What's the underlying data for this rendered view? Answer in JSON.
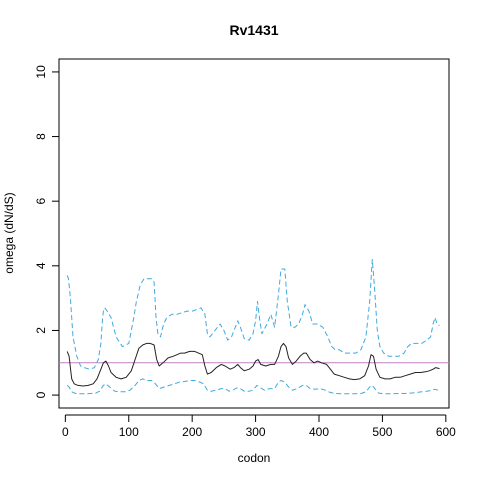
{
  "chart_data": {
    "type": "line",
    "title": "Rv1431",
    "xlabel": "codon",
    "ylabel": "omega (dN/dS)",
    "xlim": [
      -10,
      605
    ],
    "ylim": [
      -0.4,
      10.4
    ],
    "x_ticks": [
      0,
      100,
      200,
      300,
      400,
      500,
      600
    ],
    "x_tick_labels": [
      "0",
      "100",
      "200",
      "300",
      "400",
      "500",
      "600"
    ],
    "y_ticks": [
      0,
      2,
      4,
      6,
      8,
      10
    ],
    "y_tick_labels": [
      "0",
      "2",
      "4",
      "6",
      "8",
      "10"
    ],
    "grid": false,
    "legend": "none",
    "reference_line": {
      "y": 1,
      "color": "#c080c0"
    },
    "series": [
      {
        "style": "dashed",
        "color": "#3fa9e0",
        "points": [
          [
            3,
            3.7
          ],
          [
            5,
            3.6
          ],
          [
            8,
            3.0
          ],
          [
            12,
            1.8
          ],
          [
            18,
            1.2
          ],
          [
            24,
            0.9
          ],
          [
            30,
            0.85
          ],
          [
            38,
            0.8
          ],
          [
            46,
            0.85
          ],
          [
            52,
            1.1
          ],
          [
            56,
            1.6
          ],
          [
            58,
            2.2
          ],
          [
            60,
            2.6
          ],
          [
            62,
            2.7
          ],
          [
            66,
            2.6
          ],
          [
            72,
            2.4
          ],
          [
            80,
            1.8
          ],
          [
            90,
            1.5
          ],
          [
            100,
            1.6
          ],
          [
            108,
            2.4
          ],
          [
            112,
            2.9
          ],
          [
            118,
            3.4
          ],
          [
            124,
            3.6
          ],
          [
            130,
            3.6
          ],
          [
            136,
            3.6
          ],
          [
            140,
            3.5
          ],
          [
            143,
            2.4
          ],
          [
            146,
            1.9
          ],
          [
            150,
            1.8
          ],
          [
            155,
            2.2
          ],
          [
            160,
            2.4
          ],
          [
            168,
            2.5
          ],
          [
            176,
            2.5
          ],
          [
            184,
            2.55
          ],
          [
            192,
            2.6
          ],
          [
            200,
            2.6
          ],
          [
            208,
            2.65
          ],
          [
            214,
            2.7
          ],
          [
            220,
            2.5
          ],
          [
            224,
            1.9
          ],
          [
            228,
            1.8
          ],
          [
            236,
            2.0
          ],
          [
            244,
            2.2
          ],
          [
            250,
            2.0
          ],
          [
            256,
            1.7
          ],
          [
            262,
            1.8
          ],
          [
            268,
            2.1
          ],
          [
            272,
            2.3
          ],
          [
            276,
            2.1
          ],
          [
            282,
            1.75
          ],
          [
            290,
            1.7
          ],
          [
            296,
            1.9
          ],
          [
            300,
            2.3
          ],
          [
            303,
            2.9
          ],
          [
            306,
            2.4
          ],
          [
            310,
            1.9
          ],
          [
            318,
            2.2
          ],
          [
            324,
            2.5
          ],
          [
            330,
            2.1
          ],
          [
            336,
            3.1
          ],
          [
            340,
            3.9
          ],
          [
            346,
            3.9
          ],
          [
            350,
            2.9
          ],
          [
            356,
            2.1
          ],
          [
            362,
            2.1
          ],
          [
            368,
            2.2
          ],
          [
            374,
            2.5
          ],
          [
            378,
            2.8
          ],
          [
            384,
            2.6
          ],
          [
            390,
            2.2
          ],
          [
            398,
            2.2
          ],
          [
            406,
            2.1
          ],
          [
            414,
            1.8
          ],
          [
            420,
            1.5
          ],
          [
            426,
            1.4
          ],
          [
            432,
            1.4
          ],
          [
            440,
            1.3
          ],
          [
            448,
            1.3
          ],
          [
            458,
            1.3
          ],
          [
            466,
            1.4
          ],
          [
            474,
            1.8
          ],
          [
            480,
            2.9
          ],
          [
            484,
            4.2
          ],
          [
            488,
            3.2
          ],
          [
            492,
            2.0
          ],
          [
            496,
            1.5
          ],
          [
            502,
            1.3
          ],
          [
            510,
            1.2
          ],
          [
            518,
            1.2
          ],
          [
            526,
            1.2
          ],
          [
            534,
            1.3
          ],
          [
            540,
            1.5
          ],
          [
            546,
            1.6
          ],
          [
            554,
            1.6
          ],
          [
            562,
            1.6
          ],
          [
            570,
            1.7
          ],
          [
            576,
            1.8
          ],
          [
            580,
            2.2
          ],
          [
            583,
            2.4
          ],
          [
            586,
            2.2
          ],
          [
            590,
            2.15
          ]
        ]
      },
      {
        "style": "solid",
        "color": "#222222",
        "points": [
          [
            3,
            1.35
          ],
          [
            6,
            1.2
          ],
          [
            10,
            0.5
          ],
          [
            14,
            0.35
          ],
          [
            20,
            0.3
          ],
          [
            28,
            0.28
          ],
          [
            36,
            0.3
          ],
          [
            44,
            0.35
          ],
          [
            50,
            0.5
          ],
          [
            56,
            0.8
          ],
          [
            60,
            1.0
          ],
          [
            64,
            1.05
          ],
          [
            68,
            0.9
          ],
          [
            72,
            0.7
          ],
          [
            80,
            0.55
          ],
          [
            88,
            0.5
          ],
          [
            96,
            0.55
          ],
          [
            104,
            0.75
          ],
          [
            110,
            1.1
          ],
          [
            116,
            1.45
          ],
          [
            122,
            1.55
          ],
          [
            128,
            1.6
          ],
          [
            134,
            1.6
          ],
          [
            140,
            1.55
          ],
          [
            144,
            1.1
          ],
          [
            148,
            0.9
          ],
          [
            154,
            1.0
          ],
          [
            162,
            1.15
          ],
          [
            170,
            1.2
          ],
          [
            176,
            1.25
          ],
          [
            182,
            1.3
          ],
          [
            188,
            1.3
          ],
          [
            196,
            1.35
          ],
          [
            204,
            1.35
          ],
          [
            210,
            1.3
          ],
          [
            216,
            1.25
          ],
          [
            220,
            0.9
          ],
          [
            224,
            0.65
          ],
          [
            230,
            0.7
          ],
          [
            238,
            0.85
          ],
          [
            246,
            0.95
          ],
          [
            252,
            0.9
          ],
          [
            260,
            0.8
          ],
          [
            266,
            0.85
          ],
          [
            272,
            0.95
          ],
          [
            276,
            0.85
          ],
          [
            282,
            0.75
          ],
          [
            290,
            0.8
          ],
          [
            296,
            0.9
          ],
          [
            300,
            1.05
          ],
          [
            304,
            1.1
          ],
          [
            308,
            0.95
          ],
          [
            316,
            0.9
          ],
          [
            324,
            0.95
          ],
          [
            330,
            0.95
          ],
          [
            336,
            1.2
          ],
          [
            340,
            1.5
          ],
          [
            344,
            1.6
          ],
          [
            348,
            1.5
          ],
          [
            352,
            1.15
          ],
          [
            358,
            0.95
          ],
          [
            364,
            1.05
          ],
          [
            370,
            1.2
          ],
          [
            376,
            1.3
          ],
          [
            380,
            1.3
          ],
          [
            386,
            1.1
          ],
          [
            392,
            1.0
          ],
          [
            398,
            1.05
          ],
          [
            404,
            1.0
          ],
          [
            412,
            0.95
          ],
          [
            418,
            0.8
          ],
          [
            424,
            0.65
          ],
          [
            432,
            0.6
          ],
          [
            440,
            0.55
          ],
          [
            448,
            0.5
          ],
          [
            456,
            0.48
          ],
          [
            464,
            0.5
          ],
          [
            472,
            0.6
          ],
          [
            478,
            0.9
          ],
          [
            482,
            1.25
          ],
          [
            486,
            1.2
          ],
          [
            490,
            0.8
          ],
          [
            496,
            0.55
          ],
          [
            504,
            0.5
          ],
          [
            512,
            0.5
          ],
          [
            520,
            0.55
          ],
          [
            528,
            0.55
          ],
          [
            536,
            0.6
          ],
          [
            544,
            0.65
          ],
          [
            552,
            0.7
          ],
          [
            560,
            0.7
          ],
          [
            568,
            0.72
          ],
          [
            574,
            0.75
          ],
          [
            580,
            0.8
          ],
          [
            584,
            0.85
          ],
          [
            590,
            0.82
          ]
        ]
      },
      {
        "style": "dashed",
        "color": "#3fa9e0",
        "points": [
          [
            3,
            0.3
          ],
          [
            6,
            0.25
          ],
          [
            10,
            0.1
          ],
          [
            16,
            0.05
          ],
          [
            24,
            0.04
          ],
          [
            32,
            0.04
          ],
          [
            40,
            0.05
          ],
          [
            48,
            0.06
          ],
          [
            54,
            0.12
          ],
          [
            60,
            0.3
          ],
          [
            64,
            0.35
          ],
          [
            70,
            0.25
          ],
          [
            78,
            0.12
          ],
          [
            86,
            0.1
          ],
          [
            94,
            0.1
          ],
          [
            102,
            0.15
          ],
          [
            110,
            0.3
          ],
          [
            116,
            0.45
          ],
          [
            122,
            0.5
          ],
          [
            130,
            0.45
          ],
          [
            136,
            0.45
          ],
          [
            142,
            0.35
          ],
          [
            148,
            0.2
          ],
          [
            156,
            0.25
          ],
          [
            164,
            0.3
          ],
          [
            172,
            0.35
          ],
          [
            180,
            0.4
          ],
          [
            188,
            0.42
          ],
          [
            196,
            0.45
          ],
          [
            204,
            0.45
          ],
          [
            212,
            0.4
          ],
          [
            218,
            0.35
          ],
          [
            224,
            0.15
          ],
          [
            230,
            0.12
          ],
          [
            238,
            0.15
          ],
          [
            246,
            0.2
          ],
          [
            252,
            0.2
          ],
          [
            258,
            0.12
          ],
          [
            264,
            0.15
          ],
          [
            270,
            0.22
          ],
          [
            276,
            0.2
          ],
          [
            282,
            0.12
          ],
          [
            290,
            0.12
          ],
          [
            296,
            0.15
          ],
          [
            302,
            0.3
          ],
          [
            306,
            0.25
          ],
          [
            314,
            0.15
          ],
          [
            322,
            0.2
          ],
          [
            330,
            0.2
          ],
          [
            336,
            0.4
          ],
          [
            340,
            0.45
          ],
          [
            346,
            0.4
          ],
          [
            352,
            0.25
          ],
          [
            358,
            0.15
          ],
          [
            366,
            0.2
          ],
          [
            374,
            0.3
          ],
          [
            380,
            0.3
          ],
          [
            386,
            0.2
          ],
          [
            394,
            0.18
          ],
          [
            402,
            0.2
          ],
          [
            410,
            0.15
          ],
          [
            418,
            0.08
          ],
          [
            426,
            0.05
          ],
          [
            436,
            0.04
          ],
          [
            446,
            0.04
          ],
          [
            456,
            0.04
          ],
          [
            466,
            0.05
          ],
          [
            474,
            0.1
          ],
          [
            480,
            0.25
          ],
          [
            484,
            0.3
          ],
          [
            488,
            0.2
          ],
          [
            494,
            0.06
          ],
          [
            504,
            0.04
          ],
          [
            514,
            0.04
          ],
          [
            524,
            0.05
          ],
          [
            534,
            0.05
          ],
          [
            544,
            0.06
          ],
          [
            554,
            0.08
          ],
          [
            562,
            0.1
          ],
          [
            570,
            0.12
          ],
          [
            576,
            0.14
          ],
          [
            582,
            0.18
          ],
          [
            586,
            0.16
          ],
          [
            590,
            0.15
          ]
        ]
      }
    ]
  }
}
